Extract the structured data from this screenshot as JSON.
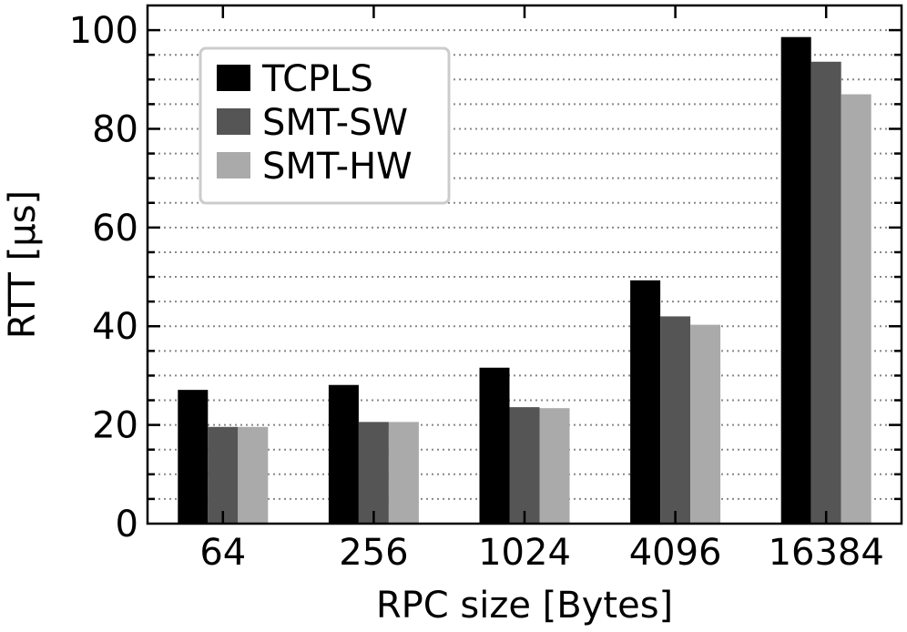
{
  "chart_data": {
    "type": "bar",
    "title": "",
    "xlabel": "RPC size [Bytes]",
    "ylabel": "RTT [µs]",
    "categories": [
      "64",
      "256",
      "1024",
      "4096",
      "16384"
    ],
    "ylim": [
      0,
      105
    ],
    "yticks": [
      "0",
      "20",
      "40",
      "60",
      "80",
      "100"
    ],
    "y_minor_step": 5,
    "grid": "horizontal dotted",
    "legend_position": "top-left",
    "series": [
      {
        "name": "TCPLS",
        "color": "#000000",
        "values": [
          27.1,
          28.1,
          31.6,
          49.3,
          98.6
        ]
      },
      {
        "name": "SMT-SW",
        "color": "#555555",
        "values": [
          19.6,
          20.6,
          23.6,
          42.0,
          93.6
        ]
      },
      {
        "name": "SMT-HW",
        "color": "#aaaaaa",
        "values": [
          19.6,
          20.6,
          23.4,
          40.3,
          87.0
        ]
      }
    ]
  }
}
